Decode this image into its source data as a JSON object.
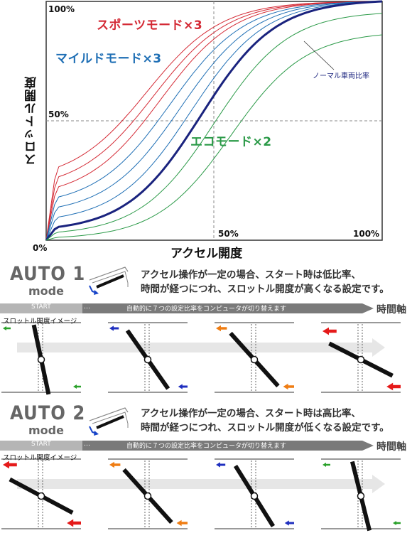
{
  "chart": {
    "ylabel": "スロットル開度",
    "xlabel": "アクセル開度",
    "ticks": {
      "y100": "100%",
      "y50": "50%",
      "origin": "0%",
      "x50": "50%",
      "x100": "100%"
    },
    "modes": {
      "sport": {
        "label": "スポーツモード×3",
        "color": "#d42a35"
      },
      "mild": {
        "label": "マイルドモード×3",
        "color": "#1f6fb5"
      },
      "eco": {
        "label": "エコモード×2",
        "color": "#2b9a48"
      }
    },
    "normal_note": "ノーマル車両比率",
    "normal_color": "#1a237e"
  },
  "chart_data": {
    "type": "line",
    "title": "",
    "xlabel": "アクセル開度",
    "ylabel": "スロットル開度",
    "xlim": [
      0,
      100
    ],
    "ylim": [
      0,
      100
    ],
    "grid": "dashed at 50%",
    "series": [
      {
        "name": "スポーツモード×3",
        "curves": 3
      },
      {
        "name": "マイルドモード×3",
        "curves": 3
      },
      {
        "name": "エコモード×2",
        "curves": 2
      },
      {
        "name": "ノーマル車両比率",
        "curves": 1
      }
    ]
  },
  "auto1": {
    "title": "AUTO 1",
    "mode": "mode",
    "desc1": "アクセル操作が一定の場合、スタート時は低比率、",
    "desc2": "時間が経つにつれ、スロットル開度が高くなる設定です。",
    "start": "START",
    "dots": "…",
    "bar_text": "自動的に７つの設定比率をコンピュータが切り替えます",
    "time_axis": "時間軸",
    "sub_label": "スロットル開度イメージ"
  },
  "auto2": {
    "title": "AUTO 2",
    "mode": "mode",
    "desc1": "アクセル操作が一定の場合、スタート時は高比率、",
    "desc2": "時間が経つにつれ、スロットル開度が低くなる設定です。",
    "start": "START",
    "dots": "…",
    "bar_text": "自動的に７つの設定比率をコンピュータが切り替えます",
    "time_axis": "時間軸",
    "sub_label": "スロットル開度イメージ"
  }
}
